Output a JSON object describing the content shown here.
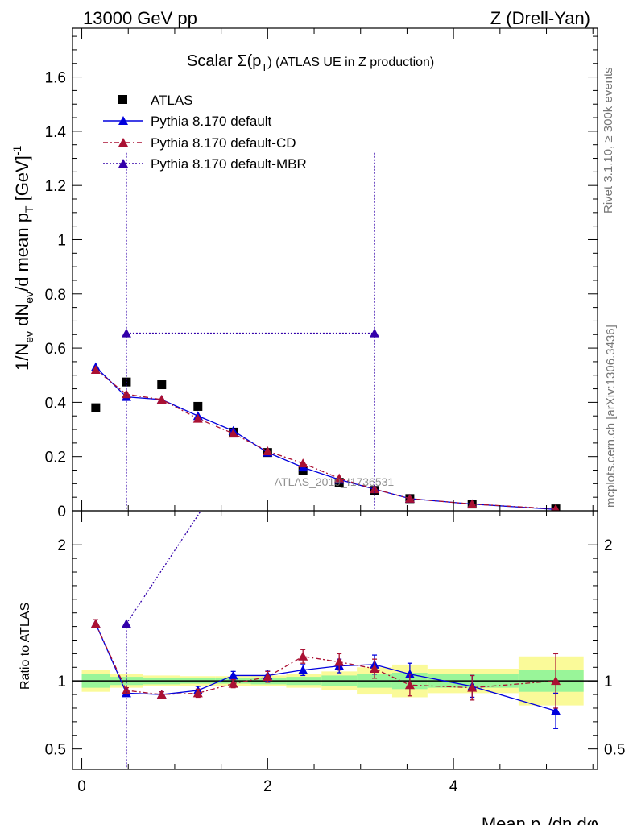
{
  "header": {
    "left": "13000 GeV pp",
    "right": "Z (Drell-Yan)"
  },
  "side_text": {
    "rivet": "Rivet 3.1.10, ≥ 300k events",
    "mcplots": "mcplots.cern.ch [arXiv:1306.3436]"
  },
  "watermark": "ATLAS_2019_I1736531",
  "colors": {
    "atlas": "#000000",
    "default": "#0000dd",
    "cd": "#aa1133",
    "mbr": "#3300aa",
    "band_inner": "#99f599",
    "band_outer": "#fafa99"
  },
  "chart_data": [
    {
      "type": "scatter",
      "title_prefix": "Scalar Σ(p",
      "title_sub": "T",
      "title_suffix": ") (ATLAS UE in Z production)",
      "ylabel": "1/N_ev dN_ev/d mean p_T [GeV]^-1",
      "xlim": [
        -0.1,
        5.55
      ],
      "ylim": [
        0,
        1.78
      ],
      "yticks": [
        0,
        0.2,
        0.4,
        0.6,
        0.8,
        1,
        1.2,
        1.4,
        1.6
      ],
      "ytick_labels": [
        "0",
        "0.2",
        "0.4",
        "0.6",
        "0.8",
        "1",
        "1.2",
        "1.4",
        "1.6"
      ],
      "legend": [
        "ATLAS",
        "Pythia 8.170 default",
        "Pythia 8.170 default-CD",
        "Pythia 8.170 default-MBR"
      ],
      "series": [
        {
          "name": "ATLAS",
          "x": [
            0.15,
            0.48,
            0.86,
            1.25,
            1.63,
            2.0,
            2.38,
            2.77,
            3.15,
            3.53,
            4.2,
            5.1
          ],
          "y": [
            0.38,
            0.475,
            0.465,
            0.385,
            0.29,
            0.215,
            0.15,
            0.105,
            0.075,
            0.045,
            0.025,
            0.007
          ],
          "xerr": [
            0.15,
            0.08,
            0.1,
            0.1,
            0.1,
            0.1,
            0.1,
            0.1,
            0.1,
            0.1,
            0.1,
            0.1
          ]
        },
        {
          "name": "Pythia 8.170 default",
          "x": [
            0.15,
            0.48,
            0.86,
            1.25,
            1.63,
            2.0,
            2.38,
            2.77,
            3.15,
            3.53,
            4.2,
            5.1
          ],
          "y": [
            0.53,
            0.42,
            0.41,
            0.35,
            0.295,
            0.215,
            0.16,
            0.115,
            0.08,
            0.045,
            0.025,
            0.005
          ],
          "yerr": [
            0.015,
            0.01,
            0.01,
            0.01,
            0.01,
            0.008,
            0.008,
            0.006,
            0.005,
            0.004,
            0.003,
            0.002
          ]
        },
        {
          "name": "Pythia 8.170 default-CD",
          "x": [
            0.15,
            0.48,
            0.86,
            1.25,
            1.63,
            2.0,
            2.38,
            2.77,
            3.15,
            3.53,
            4.2,
            5.1
          ],
          "y": [
            0.52,
            0.43,
            0.41,
            0.34,
            0.285,
            0.22,
            0.175,
            0.12,
            0.08,
            0.045,
            0.025,
            0.007
          ],
          "yerr": [
            0.015,
            0.01,
            0.01,
            0.01,
            0.01,
            0.008,
            0.008,
            0.006,
            0.005,
            0.004,
            0.003,
            0.002
          ]
        },
        {
          "name": "Pythia 8.170 default-MBR",
          "x": [
            0.48,
            3.15
          ],
          "y": [
            0.655,
            0.655
          ],
          "yerr": [
            0.665,
            0.665
          ]
        }
      ]
    },
    {
      "type": "scatter",
      "ylabel": "Ratio to ATLAS",
      "xlabel": "Mean p_T/dη dφ",
      "xlim": [
        -0.1,
        5.55
      ],
      "ylim": [
        0.35,
        2.25
      ],
      "yticks": [
        0.5,
        1,
        2
      ],
      "ytick_labels": [
        "0.5",
        "1",
        "2"
      ],
      "xticks": [
        0,
        2,
        4
      ],
      "xtick_labels": [
        "0",
        "2",
        "4"
      ],
      "bands": {
        "edges": [
          0.0,
          0.3,
          0.66,
          1.06,
          1.44,
          1.82,
          2.2,
          2.58,
          2.96,
          3.34,
          3.72,
          4.7,
          5.4
        ],
        "inner": [
          0.05,
          0.03,
          0.025,
          0.02,
          0.02,
          0.025,
          0.03,
          0.04,
          0.05,
          0.06,
          0.05,
          0.08
        ],
        "outer": [
          0.08,
          0.05,
          0.04,
          0.035,
          0.035,
          0.04,
          0.05,
          0.07,
          0.1,
          0.12,
          0.09,
          0.18
        ]
      },
      "series": [
        {
          "name": "Pythia 8.170 default",
          "x": [
            0.15,
            0.48,
            0.86,
            1.25,
            1.63,
            2.0,
            2.38,
            2.77,
            3.15,
            3.53,
            4.2,
            5.1
          ],
          "y": [
            1.42,
            0.91,
            0.9,
            0.93,
            1.04,
            1.04,
            1.08,
            1.11,
            1.12,
            1.05,
            0.96,
            0.78
          ],
          "yerr": [
            0.03,
            0.02,
            0.02,
            0.03,
            0.03,
            0.04,
            0.04,
            0.05,
            0.07,
            0.08,
            0.08,
            0.13
          ]
        },
        {
          "name": "Pythia 8.170 default-CD",
          "x": [
            0.15,
            0.48,
            0.86,
            1.25,
            1.63,
            2.0,
            2.38,
            2.77,
            3.15,
            3.53,
            4.2,
            5.1
          ],
          "y": [
            1.42,
            0.93,
            0.9,
            0.91,
            0.98,
            1.03,
            1.18,
            1.14,
            1.09,
            0.97,
            0.95,
            1.0
          ],
          "yerr": [
            0.03,
            0.02,
            0.02,
            0.03,
            0.03,
            0.04,
            0.05,
            0.06,
            0.07,
            0.08,
            0.09,
            0.2
          ]
        },
        {
          "name": "Pythia 8.170 default-MBR",
          "x": [
            0.48,
            1.33
          ],
          "y": [
            1.42,
            2.3
          ],
          "yerr": [
            1.5,
            0
          ]
        }
      ]
    }
  ]
}
